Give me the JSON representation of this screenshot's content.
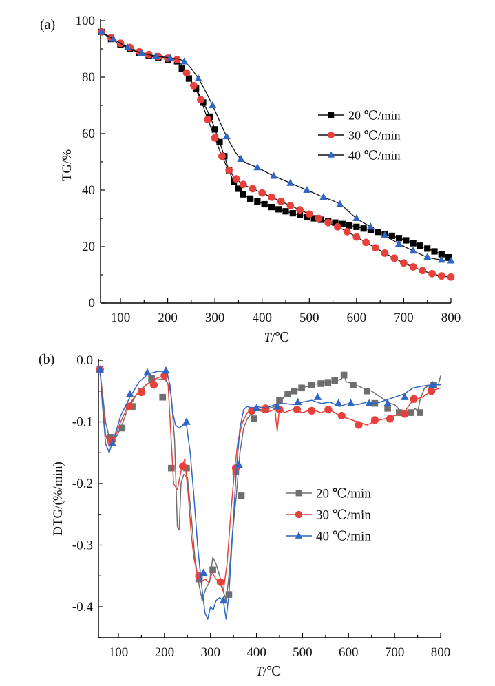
{
  "chart_data": [
    {
      "panel_label": "(a)",
      "type": "line",
      "title": "",
      "xlabel_italic": "T",
      "xlabel_rest": "/℃",
      "ylabel": "TG/%",
      "xlim": [
        60,
        800
      ],
      "ylim": [
        0,
        100
      ],
      "xticks": [
        100,
        200,
        300,
        400,
        500,
        600,
        700,
        800
      ],
      "yticks": [
        0,
        20,
        40,
        60,
        80,
        100
      ],
      "legend_position": "center-right",
      "series": [
        {
          "name": "20 ℃/min",
          "color": "#000000",
          "line_color": "#000000",
          "marker": "square",
          "x": [
            60,
            80,
            100,
            120,
            140,
            160,
            180,
            200,
            220,
            230,
            245,
            260,
            275,
            290,
            300,
            310,
            320,
            330,
            340,
            350,
            360,
            375,
            390,
            405,
            420,
            435,
            450,
            465,
            480,
            495,
            510,
            525,
            540,
            555,
            570,
            585,
            600,
            615,
            630,
            645,
            660,
            675,
            690,
            705,
            720,
            735,
            750,
            765,
            780,
            795
          ],
          "values": [
            96,
            93.5,
            91.5,
            90,
            88.5,
            87.5,
            86.8,
            86.2,
            85.6,
            83,
            79.5,
            76,
            71,
            66,
            61.5,
            57,
            52,
            47,
            43,
            40.5,
            38.5,
            37,
            36,
            35,
            34,
            33.2,
            32.5,
            31.8,
            31.2,
            30.6,
            30,
            29.5,
            29,
            28.5,
            28,
            27.5,
            27,
            26.4,
            25.8,
            25.2,
            24.5,
            23.8,
            23,
            22.2,
            21.2,
            20.3,
            19.3,
            18.3,
            17.3,
            16.2
          ]
        },
        {
          "name": "30 ℃/min",
          "color": "#e8413c",
          "line_color": "#000000",
          "marker": "circle",
          "x": [
            60,
            80,
            100,
            120,
            140,
            160,
            180,
            200,
            220,
            240,
            255,
            270,
            285,
            300,
            315,
            330,
            345,
            360,
            380,
            400,
            420,
            440,
            460,
            480,
            500,
            520,
            540,
            560,
            580,
            600,
            620,
            640,
            660,
            680,
            700,
            720,
            740,
            760,
            780,
            800
          ],
          "values": [
            96,
            94,
            92,
            90.5,
            89,
            88,
            87.3,
            86.7,
            86.2,
            81.5,
            77,
            72,
            65,
            58.5,
            52,
            47,
            44,
            42,
            40.5,
            39,
            37.5,
            36,
            34.5,
            33,
            31.5,
            30,
            28.5,
            27,
            25.3,
            23.4,
            21.5,
            19.6,
            17.7,
            15.9,
            14.2,
            12.8,
            11.5,
            10.4,
            9.6,
            9.2
          ]
        },
        {
          "name": "40 ℃/min",
          "color": "#2e67c4",
          "line_color": "#000000",
          "marker": "triangle",
          "x": [
            60,
            85,
            115,
            145,
            175,
            205,
            235,
            265,
            295,
            325,
            355,
            390,
            425,
            460,
            495,
            530,
            565,
            600,
            630,
            660,
            690,
            720,
            750,
            780,
            800
          ],
          "values": [
            96,
            93.5,
            90.5,
            88.5,
            87.5,
            86.8,
            85.5,
            79.5,
            70,
            59,
            51,
            48,
            45,
            42.5,
            40,
            37.5,
            35,
            30,
            27,
            24,
            21,
            18.5,
            16.3,
            15.3,
            15
          ]
        }
      ]
    },
    {
      "panel_label": "(b)",
      "type": "line",
      "title": "",
      "xlabel_italic": "T",
      "xlabel_rest": "/℃",
      "ylabel": "DTG/(%/min)",
      "xlim": [
        60,
        800
      ],
      "ylim": [
        -0.45,
        0.0
      ],
      "xticks": [
        100,
        200,
        300,
        400,
        500,
        600,
        700,
        800
      ],
      "yticks": [
        -0.4,
        -0.3,
        -0.2,
        -0.1,
        0.0
      ],
      "ytick_labels": [
        "-0.4",
        "-0.3",
        "-0.2",
        "-0.1",
        "0.0"
      ],
      "legend_position": "center-right",
      "series": [
        {
          "name": "20 ℃/min",
          "color": "#6e6e6e",
          "marker": "square",
          "x": [
            60,
            65,
            72,
            80,
            88,
            95,
            105,
            120,
            140,
            160,
            180,
            200,
            210,
            215,
            222,
            228,
            232,
            236,
            242,
            250,
            258,
            266,
            274,
            282,
            290,
            298,
            305,
            312,
            320,
            328,
            334,
            340,
            348,
            356,
            364,
            372,
            380,
            390,
            400,
            420,
            440,
            460,
            480,
            500,
            520,
            540,
            560,
            575,
            585,
            590,
            595,
            610,
            630,
            650,
            670,
            690,
            700,
            710,
            720,
            735,
            745,
            750,
            755,
            765,
            780,
            795,
            800
          ],
          "xm": [
            60,
            82,
            108,
            130,
            150,
            172,
            196,
            215,
            248,
            276,
            305,
            340,
            355,
            367,
            395,
            420,
            450,
            468,
            482,
            498,
            520,
            540,
            555,
            570,
            590,
            610,
            640,
            657,
            685,
            710,
            735,
            755,
            785
          ],
          "values": [
            -0.02,
            -0.05,
            -0.1,
            -0.125,
            -0.127,
            -0.125,
            -0.11,
            -0.08,
            -0.055,
            -0.04,
            -0.032,
            -0.03,
            -0.04,
            -0.06,
            -0.13,
            -0.27,
            -0.275,
            -0.2,
            -0.185,
            -0.19,
            -0.25,
            -0.32,
            -0.36,
            -0.39,
            -0.37,
            -0.36,
            -0.32,
            -0.33,
            -0.35,
            -0.375,
            -0.39,
            -0.35,
            -0.28,
            -0.22,
            -0.15,
            -0.11,
            -0.095,
            -0.085,
            -0.08,
            -0.08,
            -0.075,
            -0.06,
            -0.05,
            -0.045,
            -0.04,
            -0.037,
            -0.035,
            -0.033,
            -0.03,
            -0.024,
            -0.035,
            -0.038,
            -0.045,
            -0.05,
            -0.06,
            -0.07,
            -0.072,
            -0.08,
            -0.085,
            -0.085,
            -0.078,
            -0.085,
            -0.065,
            -0.045,
            -0.04,
            -0.04,
            -0.025
          ],
          "values_m": [
            -0.015,
            -0.125,
            -0.11,
            -0.075,
            -0.05,
            -0.03,
            -0.06,
            -0.175,
            -0.175,
            -0.355,
            -0.34,
            -0.38,
            -0.18,
            -0.22,
            -0.095,
            -0.08,
            -0.065,
            -0.055,
            -0.05,
            -0.045,
            -0.04,
            -0.038,
            -0.036,
            -0.033,
            -0.024,
            -0.04,
            -0.05,
            -0.07,
            -0.078,
            -0.085,
            -0.085,
            -0.085,
            -0.04
          ]
        },
        {
          "name": "30 ℃/min",
          "color": "#e8413c",
          "marker": "circle",
          "x": [
            60,
            65,
            72,
            80,
            88,
            95,
            105,
            120,
            140,
            160,
            180,
            200,
            208,
            214,
            220,
            228,
            236,
            244,
            252,
            258,
            264,
            272,
            280,
            288,
            296,
            304,
            312,
            320,
            328,
            336,
            344,
            352,
            360,
            370,
            380,
            390,
            400,
            420,
            440,
            445,
            450,
            460,
            480,
            500,
            520,
            540,
            560,
            580,
            600,
            620,
            640,
            660,
            680,
            700,
            720,
            740,
            760,
            780,
            800
          ],
          "xm": [
            60,
            86,
            123,
            150,
            177,
            200,
            240,
            275,
            322,
            355,
            390,
            420,
            450,
            488,
            520,
            556,
            585,
            622,
            657,
            690,
            722,
            742,
            780
          ],
          "values": [
            -0.015,
            -0.06,
            -0.12,
            -0.14,
            -0.13,
            -0.12,
            -0.1,
            -0.075,
            -0.055,
            -0.04,
            -0.03,
            -0.025,
            -0.04,
            -0.12,
            -0.2,
            -0.21,
            -0.18,
            -0.16,
            -0.22,
            -0.28,
            -0.32,
            -0.35,
            -0.36,
            -0.355,
            -0.36,
            -0.345,
            -0.355,
            -0.36,
            -0.375,
            -0.33,
            -0.25,
            -0.18,
            -0.13,
            -0.1,
            -0.085,
            -0.08,
            -0.08,
            -0.085,
            -0.08,
            -0.115,
            -0.075,
            -0.085,
            -0.08,
            -0.085,
            -0.08,
            -0.085,
            -0.08,
            -0.09,
            -0.095,
            -0.1,
            -0.105,
            -0.098,
            -0.095,
            -0.09,
            -0.085,
            -0.065,
            -0.06,
            -0.05,
            -0.045
          ],
          "values_m": [
            -0.015,
            -0.13,
            -0.075,
            -0.052,
            -0.04,
            -0.025,
            -0.172,
            -0.35,
            -0.36,
            -0.175,
            -0.082,
            -0.078,
            -0.08,
            -0.08,
            -0.082,
            -0.08,
            -0.09,
            -0.105,
            -0.097,
            -0.095,
            -0.087,
            -0.063,
            -0.05
          ]
        },
        {
          "name": "40 ℃/min",
          "color": "#2e67c4",
          "marker": "triangle",
          "x": [
            60,
            65,
            72,
            80,
            88,
            95,
            105,
            125,
            145,
            165,
            185,
            205,
            212,
            218,
            224,
            232,
            240,
            248,
            256,
            264,
            272,
            280,
            288,
            294,
            300,
            306,
            312,
            320,
            328,
            334,
            340,
            348,
            356,
            364,
            372,
            380,
            390,
            400,
            420,
            440,
            460,
            480,
            500,
            520,
            540,
            560,
            580,
            600,
            620,
            640,
            660,
            680,
            700,
            720,
            740,
            760,
            780,
            800
          ],
          "xm": [
            60,
            87,
            125,
            163,
            203,
            248,
            285,
            328,
            362,
            400,
            445,
            490,
            533,
            578,
            605,
            645,
            685,
            722,
            782
          ],
          "values": [
            -0.015,
            -0.07,
            -0.135,
            -0.15,
            -0.13,
            -0.115,
            -0.09,
            -0.06,
            -0.035,
            -0.022,
            -0.018,
            -0.018,
            -0.04,
            -0.085,
            -0.105,
            -0.11,
            -0.105,
            -0.105,
            -0.15,
            -0.22,
            -0.3,
            -0.36,
            -0.41,
            -0.42,
            -0.4,
            -0.405,
            -0.39,
            -0.385,
            -0.39,
            -0.42,
            -0.38,
            -0.28,
            -0.18,
            -0.11,
            -0.08,
            -0.075,
            -0.078,
            -0.075,
            -0.078,
            -0.072,
            -0.07,
            -0.072,
            -0.068,
            -0.065,
            -0.07,
            -0.068,
            -0.075,
            -0.07,
            -0.072,
            -0.068,
            -0.07,
            -0.065,
            -0.06,
            -0.055,
            -0.045,
            -0.042,
            -0.04,
            -0.04
          ],
          "values_m": [
            -0.015,
            -0.135,
            -0.055,
            -0.02,
            -0.017,
            -0.1,
            -0.345,
            -0.39,
            -0.17,
            -0.078,
            -0.075,
            -0.068,
            -0.06,
            -0.07,
            -0.07,
            -0.07,
            -0.07,
            -0.06,
            -0.04
          ]
        }
      ]
    }
  ]
}
